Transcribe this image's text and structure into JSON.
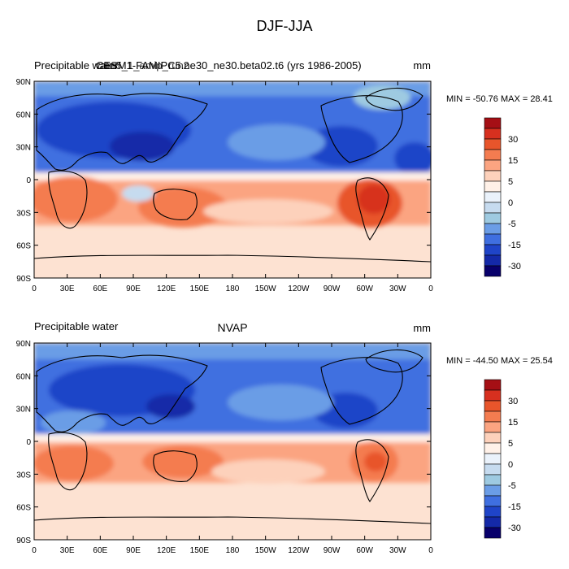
{
  "figure": {
    "title": "DJF-JJA",
    "legend_levels": [
      "30",
      "15",
      "5",
      "0",
      "-5",
      "-15",
      "-30"
    ],
    "colors": [
      "#a50f15",
      "#d7301f",
      "#e8552b",
      "#f47c50",
      "#fba481",
      "#fdd1bb",
      "#fff1e8",
      "#eaf2fb",
      "#c6dbef",
      "#9ecae1",
      "#6b9de6",
      "#3f6fe0",
      "#1f44c8",
      "#1429a8",
      "#08006b"
    ],
    "lat_labels": [
      "90N",
      "60N",
      "30N",
      "0",
      "30S",
      "60S",
      "90S"
    ],
    "lon_labels": [
      "0",
      "30E",
      "60E",
      "90E",
      "120E",
      "150E",
      "180",
      "150W",
      "120W",
      "90W",
      "60W",
      "30W",
      "0"
    ]
  },
  "panels": [
    {
      "left_label": "Precipitable water",
      "center_label": "cam5_1_amip_run2",
      "center_label_overlay": "CESM1-FAMIPC5.ne30_ne30.beta02.t6 (yrs 1986-2005)",
      "units": "mm",
      "stats": "MIN = -50.76 MAX =  28.41"
    },
    {
      "left_label": "Precipitable water",
      "center_label": "NVAP",
      "units": "mm",
      "stats": "MIN = -44.50 MAX =  25.54"
    }
  ]
}
